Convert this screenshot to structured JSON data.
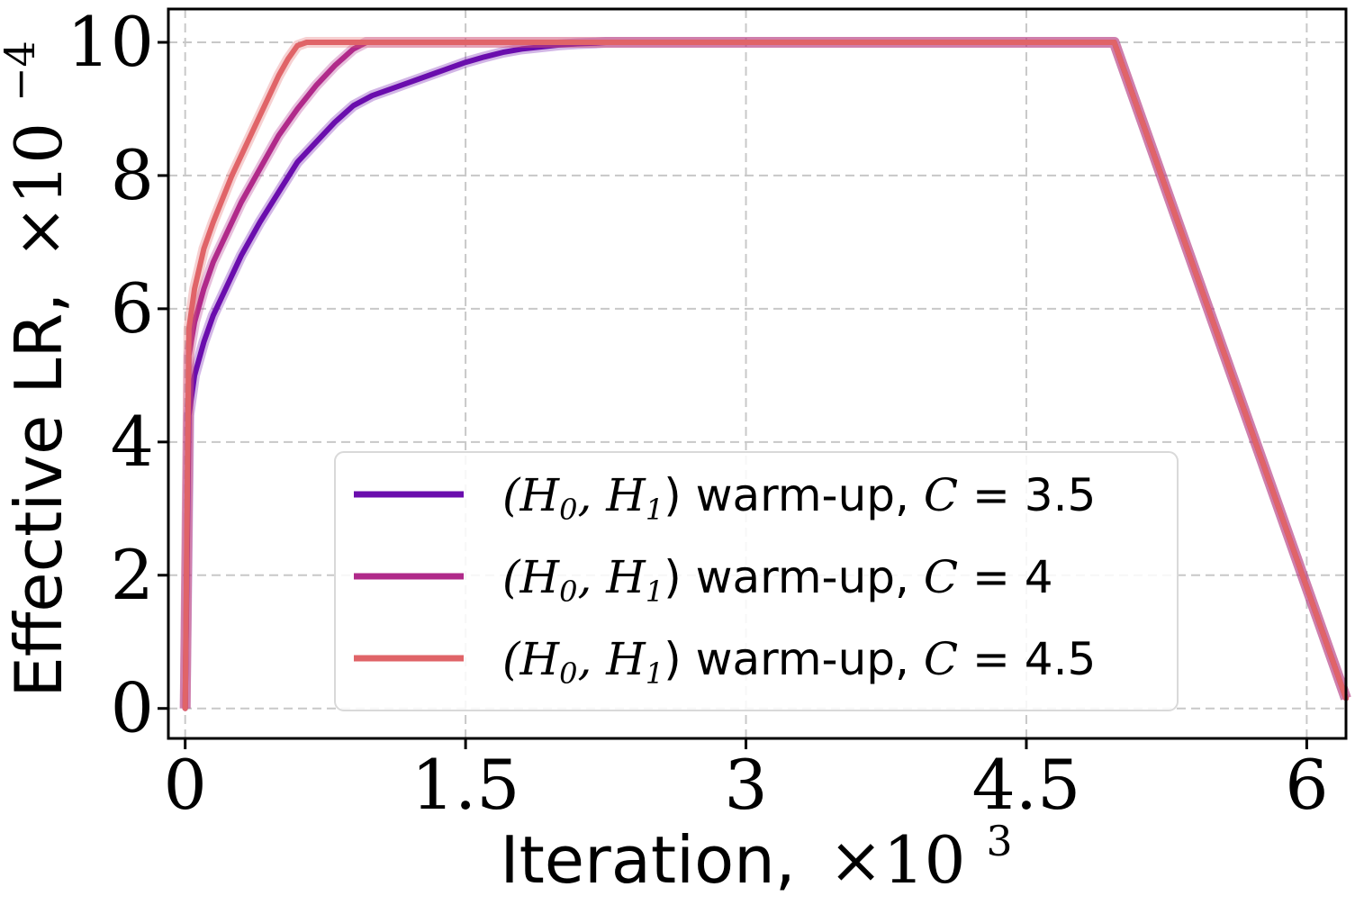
{
  "chart_data": {
    "type": "line",
    "xlabel": "Iteration,",
    "xlabel_scale": "×10",
    "xlabel_exp": "3",
    "ylabel": "Effective LR,",
    "ylabel_scale": "×10",
    "ylabel_exp": "−4",
    "xlim": [
      -0.09,
      6.21
    ],
    "ylim": [
      -0.45,
      10.5
    ],
    "xticks": [
      0,
      1.5,
      3,
      4.5,
      6
    ],
    "xtick_labels": [
      "0",
      "1.5",
      "3",
      "4.5",
      "6"
    ],
    "yticks": [
      0,
      2,
      4,
      6,
      8,
      10
    ],
    "ytick_labels": [
      "0",
      "2",
      "4",
      "6",
      "8",
      "10"
    ],
    "grid": true,
    "legend_position": "lower-center",
    "series": [
      {
        "name": "(H0, H1) warm-up, C = 3.5",
        "legend_prefix": "(H",
        "legend_mid": ", H",
        "legend_suffix": ") warm-up, ",
        "legend_c": "C",
        "legend_eq": " = ",
        "legend_value": "3.5",
        "color": "#6a0dad",
        "x": [
          0,
          0.02,
          0.05,
          0.1,
          0.15,
          0.2,
          0.3,
          0.4,
          0.5,
          0.6,
          0.7,
          0.8,
          0.9,
          1.0,
          1.1,
          1.2,
          1.3,
          1.4,
          1.5,
          1.6,
          1.7,
          1.8,
          1.9,
          2.0,
          2.1,
          2.2,
          2.25,
          4.97,
          6.21
        ],
        "y": [
          0,
          4.4,
          5.0,
          5.5,
          5.9,
          6.2,
          6.8,
          7.3,
          7.75,
          8.2,
          8.5,
          8.8,
          9.05,
          9.2,
          9.3,
          9.4,
          9.5,
          9.6,
          9.7,
          9.78,
          9.85,
          9.9,
          9.93,
          9.96,
          9.98,
          9.99,
          10,
          10,
          0.15
        ]
      },
      {
        "name": "(H0, H1) warm-up, C = 4",
        "legend_prefix": "(H",
        "legend_mid": ", H",
        "legend_suffix": ") warm-up, ",
        "legend_c": "C",
        "legend_eq": " = ",
        "legend_value": "4",
        "color": "#b02a8a",
        "x": [
          0,
          0.02,
          0.05,
          0.1,
          0.15,
          0.2,
          0.3,
          0.4,
          0.5,
          0.6,
          0.7,
          0.8,
          0.9,
          0.97,
          4.97,
          6.21
        ],
        "y": [
          0,
          5.3,
          5.8,
          6.3,
          6.7,
          7.0,
          7.6,
          8.1,
          8.6,
          9.0,
          9.35,
          9.65,
          9.9,
          10,
          10,
          0.15
        ]
      },
      {
        "name": "(H0, H1) warm-up, C = 4.5",
        "legend_prefix": "(H",
        "legend_mid": ", H",
        "legend_suffix": ") warm-up, ",
        "legend_c": "C",
        "legend_eq": " = ",
        "legend_value": "4.5",
        "color": "#e06468",
        "x": [
          0,
          0.02,
          0.05,
          0.1,
          0.15,
          0.2,
          0.25,
          0.3,
          0.4,
          0.5,
          0.55,
          0.6,
          0.65,
          4.97,
          6.21
        ],
        "y": [
          0,
          5.7,
          6.3,
          6.9,
          7.3,
          7.65,
          8.0,
          8.3,
          8.9,
          9.5,
          9.75,
          9.95,
          10,
          10,
          0.15
        ]
      }
    ]
  }
}
